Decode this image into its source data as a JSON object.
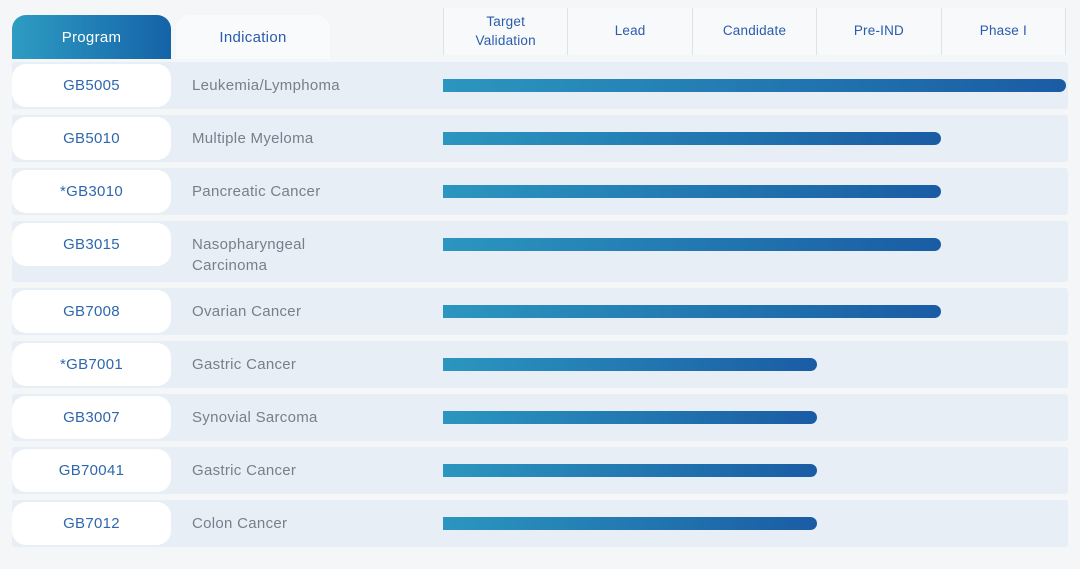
{
  "tabs": {
    "program_label": "Program",
    "indication_label": "Indication"
  },
  "chart_data": {
    "type": "bar",
    "title": "",
    "stages": [
      "Target Validation",
      "Lead",
      "Candidate",
      "Pre-IND",
      "Phase I"
    ],
    "rows": [
      {
        "program": "GB5005",
        "indication": "Leukemia/Lymphoma",
        "stage_reached": "Phase I",
        "stages_completed": 5
      },
      {
        "program": "GB5010",
        "indication": "Multiple Myeloma",
        "stage_reached": "Pre-IND",
        "stages_completed": 4
      },
      {
        "program": "*GB3010",
        "indication": "Pancreatic Cancer",
        "stage_reached": "Pre-IND",
        "stages_completed": 4
      },
      {
        "program": "GB3015",
        "indication": "Nasopharyngeal Carcinoma",
        "stage_reached": "Pre-IND",
        "stages_completed": 4
      },
      {
        "program": "GB7008",
        "indication": "Ovarian Cancer",
        "stage_reached": "Pre-IND",
        "stages_completed": 4
      },
      {
        "program": "*GB7001",
        "indication": "Gastric Cancer",
        "stage_reached": "Candidate",
        "stages_completed": 3
      },
      {
        "program": "GB3007",
        "indication": "Synovial Sarcoma",
        "stage_reached": "Candidate",
        "stages_completed": 3
      },
      {
        "program": "GB70041",
        "indication": "Gastric Cancer",
        "stage_reached": "Candidate",
        "stages_completed": 3
      },
      {
        "program": "GB7012",
        "indication": "Colon Cancer",
        "stage_reached": "Candidate",
        "stages_completed": 3
      }
    ]
  },
  "colors": {
    "bar_gradient_start": "#2B96BF",
    "bar_gradient_end": "#1A5CA4",
    "tab_gradient_start": "#2E9CC3",
    "tab_gradient_end": "#1463A7",
    "row_background": "#E7EEF6",
    "program_text": "#2F67AC",
    "indication_text": "#75808C",
    "header_text": "#2B5CAB"
  }
}
